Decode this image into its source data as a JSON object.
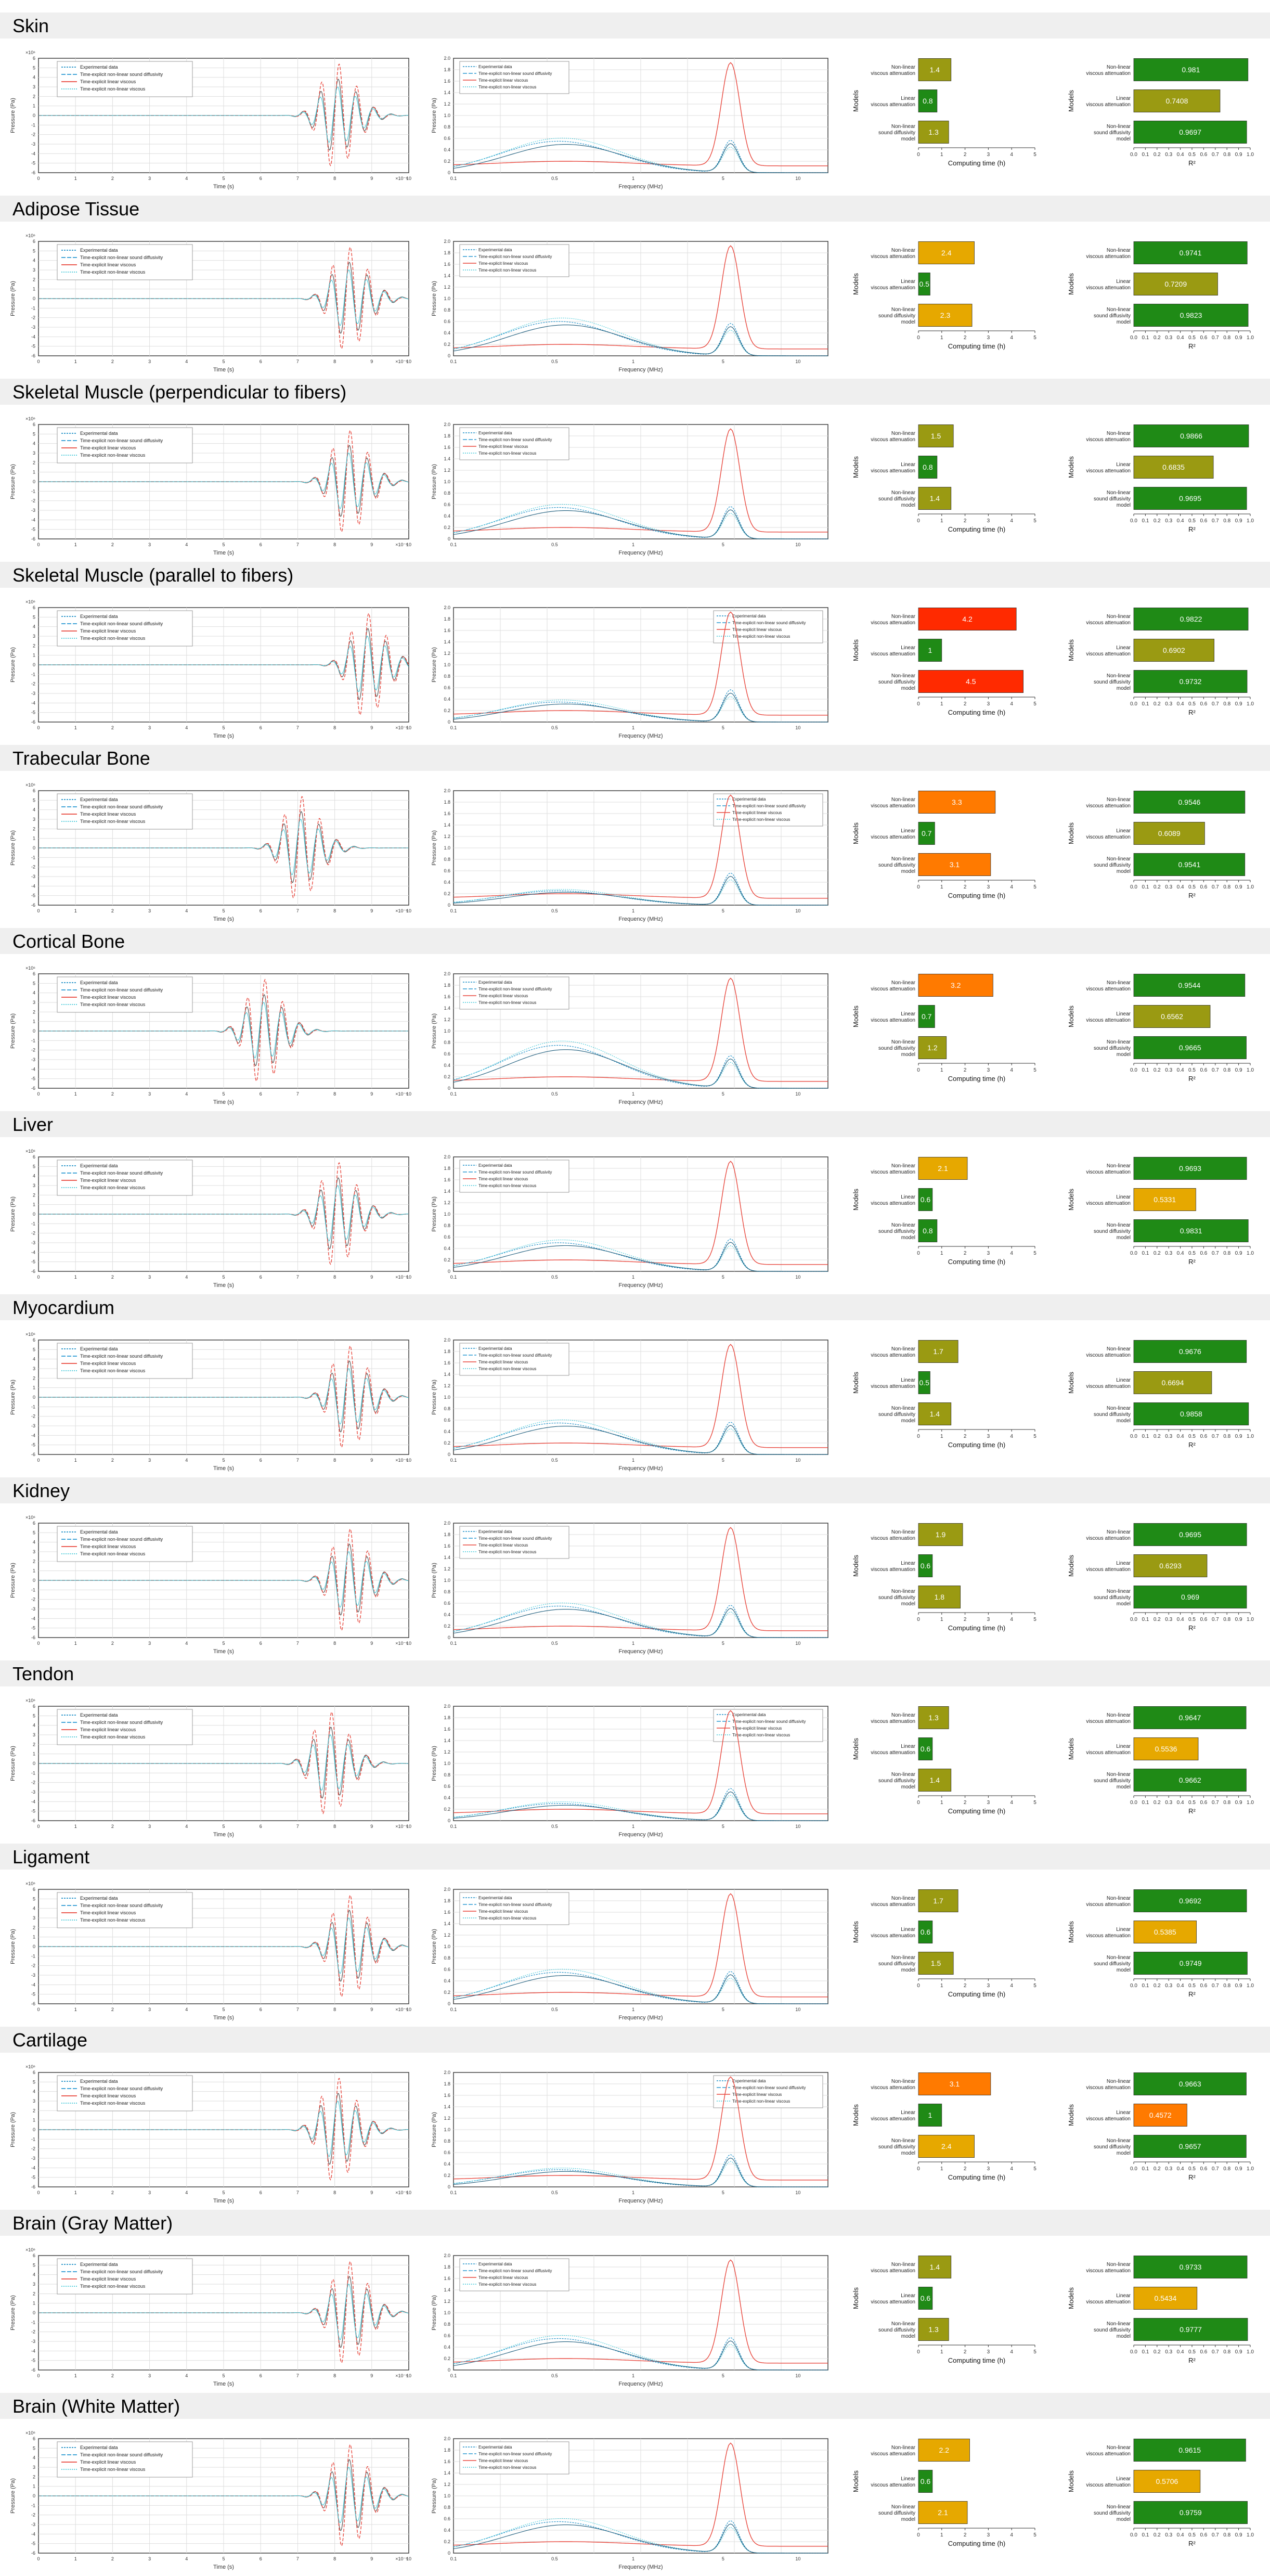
{
  "common": {
    "time_xlabel": "Time (s)",
    "freq_xlabel": "Frequency (MHz)",
    "pressure_ylabel": "Pressure (Pa)",
    "models_ylabel": "Models",
    "computing_xlabel": "Computing time (h)",
    "r2_xlabel": "R²",
    "exp_label": "Experimental data",
    "nl_sound_label": "Time-explicit non-linear sound diffusivity",
    "lin_visc_label": "Time-explicit linear viscous",
    "nl_visc_label": "Time-explicit non-linear viscous",
    "bar_labels": [
      "Non-linear viscous attenuation",
      "Linear viscous attenuation",
      "Non-linear sound diffusivity model"
    ],
    "computing_ticks": [
      "0",
      "1",
      "2",
      "3",
      "4",
      "5"
    ],
    "r2_ticks": [
      "0.0",
      "0.1",
      "0.2",
      "0.3",
      "0.4",
      "0.5",
      "0.6",
      "0.7",
      "0.8",
      "0.9",
      "1.0"
    ],
    "freq_ticks": [
      "0.1",
      "0.5",
      "1",
      "5",
      "10"
    ],
    "time_exponent": "×10⁻⁶",
    "pressure_exponent": "×10⁶",
    "colors": {
      "experimental": "#1e90c8",
      "nl_sound": "#2a9ad2",
      "lin_visc": "#e8463c",
      "nl_visc": "#40c8d8",
      "green": "#1f8a16",
      "olive": "#9a9a12",
      "yellow": "#e6a800",
      "orange": "#ff7a00",
      "red": "#ff2a00"
    }
  },
  "chart_data": [
    {
      "type": "bar",
      "title": "Skin",
      "series": [
        {
          "name": "Computing time (h)",
          "values": [
            1.4,
            0.8,
            1.3
          ]
        },
        {
          "name": "R²",
          "values": [
            0.981,
            0.7408,
            0.9697
          ]
        }
      ],
      "xlim_time": [
        0,
        5
      ],
      "xlim_r2": [
        0,
        1
      ],
      "wave_peak": 0.8,
      "spec_peak": 0.55
    },
    {
      "type": "bar",
      "title": "Adipose Tissue",
      "series": [
        {
          "name": "Computing time (h)",
          "values": [
            2.4,
            0.5,
            2.3
          ]
        },
        {
          "name": "R²",
          "values": [
            0.9741,
            0.7209,
            0.9823
          ]
        }
      ],
      "xlim_time": [
        0,
        5
      ],
      "xlim_r2": [
        0,
        1
      ],
      "wave_peak": 0.83,
      "spec_peak": 0.6
    },
    {
      "type": "bar",
      "title": "Skeletal Muscle (perpendicular to fibers)",
      "series": [
        {
          "name": "Computing time (h)",
          "values": [
            1.5,
            0.8,
            1.4
          ]
        },
        {
          "name": "R²",
          "values": [
            0.9866,
            0.6835,
            0.9695
          ]
        }
      ],
      "xlim_time": [
        0,
        5
      ],
      "xlim_r2": [
        0,
        1
      ],
      "wave_peak": 0.83,
      "spec_peak": 0.55
    },
    {
      "type": "bar",
      "title": "Skeletal Muscle (parallel to fibers)",
      "series": [
        {
          "name": "Computing time (h)",
          "values": [
            4.2,
            1.0,
            4.5
          ]
        },
        {
          "name": "R²",
          "values": [
            0.9822,
            0.6902,
            0.9732
          ]
        }
      ],
      "xlim_time": [
        0,
        5
      ],
      "xlim_r2": [
        0,
        1
      ],
      "wave_peak": 0.88,
      "spec_peak": 0.35
    },
    {
      "type": "bar",
      "title": "Trabecular Bone",
      "series": [
        {
          "name": "Computing time (h)",
          "values": [
            3.3,
            0.7,
            3.1
          ]
        },
        {
          "name": "R²",
          "values": [
            0.9546,
            0.6089,
            0.9541
          ]
        }
      ],
      "xlim_time": [
        0,
        5
      ],
      "xlim_r2": [
        0,
        1
      ],
      "wave_peak": 0.7,
      "spec_peak": 0.25
    },
    {
      "type": "bar",
      "title": "Cortical Bone",
      "series": [
        {
          "name": "Computing time (h)",
          "values": [
            3.2,
            0.7,
            1.2
          ]
        },
        {
          "name": "R²",
          "values": [
            0.9544,
            0.6562,
            0.9665
          ]
        }
      ],
      "xlim_time": [
        0,
        5
      ],
      "xlim_r2": [
        0,
        1
      ],
      "wave_peak": 0.6,
      "spec_peak": 0.75
    },
    {
      "type": "bar",
      "title": "Liver",
      "series": [
        {
          "name": "Computing time (h)",
          "values": [
            2.1,
            0.6,
            0.8
          ]
        },
        {
          "name": "R²",
          "values": [
            0.9693,
            0.5331,
            0.9831
          ]
        }
      ],
      "xlim_time": [
        0,
        5
      ],
      "xlim_r2": [
        0,
        1
      ],
      "wave_peak": 0.8,
      "spec_peak": 0.5
    },
    {
      "type": "bar",
      "title": "Myocardium",
      "series": [
        {
          "name": "Computing time (h)",
          "values": [
            1.7,
            0.5,
            1.4
          ]
        },
        {
          "name": "R²",
          "values": [
            0.9676,
            0.6694,
            0.9858
          ]
        }
      ],
      "xlim_time": [
        0,
        5
      ],
      "xlim_r2": [
        0,
        1
      ],
      "wave_peak": 0.83,
      "spec_peak": 0.55
    },
    {
      "type": "bar",
      "title": "Kidney",
      "series": [
        {
          "name": "Computing time (h)",
          "values": [
            1.9,
            0.6,
            1.8
          ]
        },
        {
          "name": "R²",
          "values": [
            0.9695,
            0.6293,
            0.969
          ]
        }
      ],
      "xlim_time": [
        0,
        5
      ],
      "xlim_r2": [
        0,
        1
      ],
      "wave_peak": 0.83,
      "spec_peak": 0.55
    },
    {
      "type": "bar",
      "title": "Tendon",
      "series": [
        {
          "name": "Computing time (h)",
          "values": [
            1.3,
            0.6,
            1.4
          ]
        },
        {
          "name": "R²",
          "values": [
            0.9647,
            0.5536,
            0.9662
          ]
        }
      ],
      "xlim_time": [
        0,
        5
      ],
      "xlim_r2": [
        0,
        1
      ],
      "wave_peak": 0.78,
      "spec_peak": 0.3
    },
    {
      "type": "bar",
      "title": "Ligament",
      "series": [
        {
          "name": "Computing time (h)",
          "values": [
            1.7,
            0.6,
            1.5
          ]
        },
        {
          "name": "R²",
          "values": [
            0.9692,
            0.5385,
            0.9749
          ]
        }
      ],
      "xlim_time": [
        0,
        5
      ],
      "xlim_r2": [
        0,
        1
      ],
      "wave_peak": 0.83,
      "spec_peak": 0.55
    },
    {
      "type": "bar",
      "title": "Cartilage",
      "series": [
        {
          "name": "Computing time (h)",
          "values": [
            3.1,
            1.0,
            2.4
          ]
        },
        {
          "name": "R²",
          "values": [
            0.9663,
            0.4572,
            0.9657
          ]
        }
      ],
      "xlim_time": [
        0,
        5
      ],
      "xlim_r2": [
        0,
        1
      ],
      "wave_peak": 0.8,
      "spec_peak": 0.3
    },
    {
      "type": "bar",
      "title": "Brain (Gray Matter)",
      "series": [
        {
          "name": "Computing time (h)",
          "values": [
            1.4,
            0.6,
            1.3
          ]
        },
        {
          "name": "R²",
          "values": [
            0.9733,
            0.5434,
            0.9777
          ]
        }
      ],
      "xlim_time": [
        0,
        5
      ],
      "xlim_r2": [
        0,
        1
      ],
      "wave_peak": 0.83,
      "spec_peak": 0.55
    },
    {
      "type": "bar",
      "title": "Brain (White Matter)",
      "series": [
        {
          "name": "Computing time (h)",
          "values": [
            2.2,
            0.6,
            2.1
          ]
        },
        {
          "name": "R²",
          "values": [
            0.9615,
            0.5706,
            0.9759
          ]
        }
      ],
      "xlim_time": [
        0,
        5
      ],
      "xlim_r2": [
        0,
        1
      ],
      "wave_peak": 0.83,
      "spec_peak": 0.55
    }
  ]
}
